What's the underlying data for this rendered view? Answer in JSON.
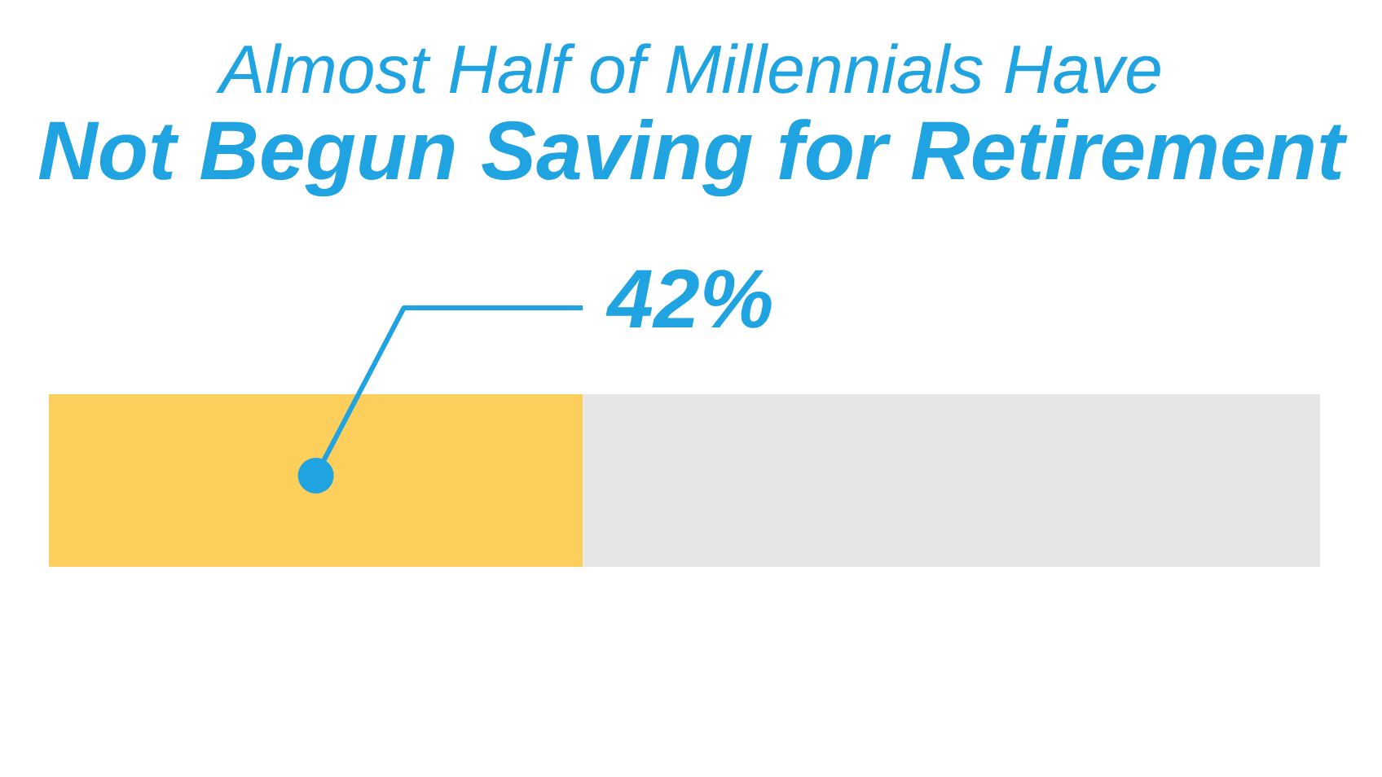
{
  "chart_data": {
    "type": "bar",
    "title": "Almost Half of Millennials Have\nNot Begun Saving for Retirement",
    "orientation": "horizontal",
    "stacked": true,
    "categories": [
      null
    ],
    "series": [
      {
        "color": "#fccf5c",
        "values": [
          42
        ],
        "value_labels": [
          "42%"
        ]
      },
      {
        "color": "#e6e6e6",
        "values": [
          58
        ]
      }
    ]
  }
}
